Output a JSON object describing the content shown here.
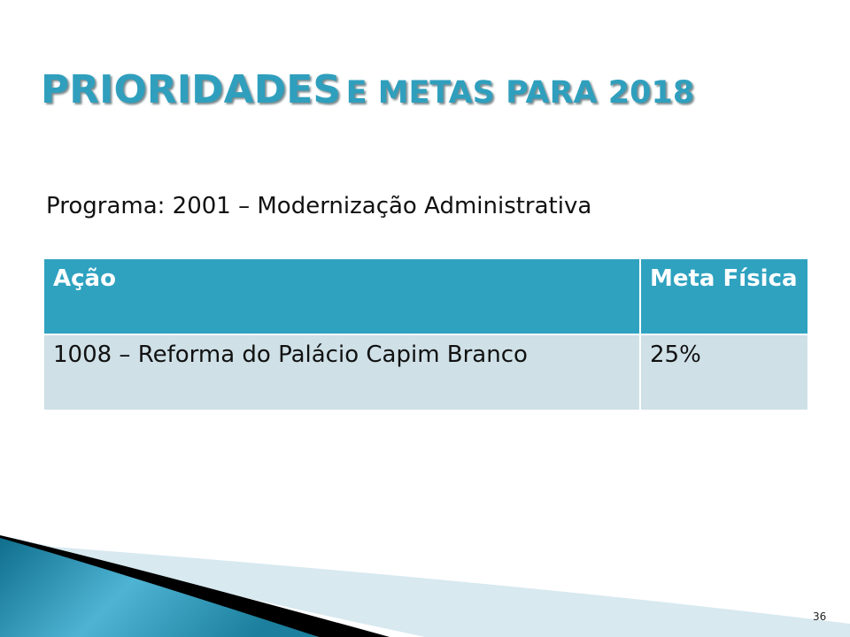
{
  "title": {
    "main": "PRIORIDADES",
    "rest": "E METAS PARA 2018"
  },
  "subtitle": "Programa: 2001 – Modernização Administrativa",
  "table": {
    "headers": [
      "Ação",
      "Meta Física"
    ],
    "rows": [
      [
        "1008 – Reforma do Palácio Capim Branco",
        "25%"
      ]
    ]
  },
  "page_number": "36",
  "colors": {
    "accent": "#2fa2c0",
    "row": "#cfe0e7"
  }
}
